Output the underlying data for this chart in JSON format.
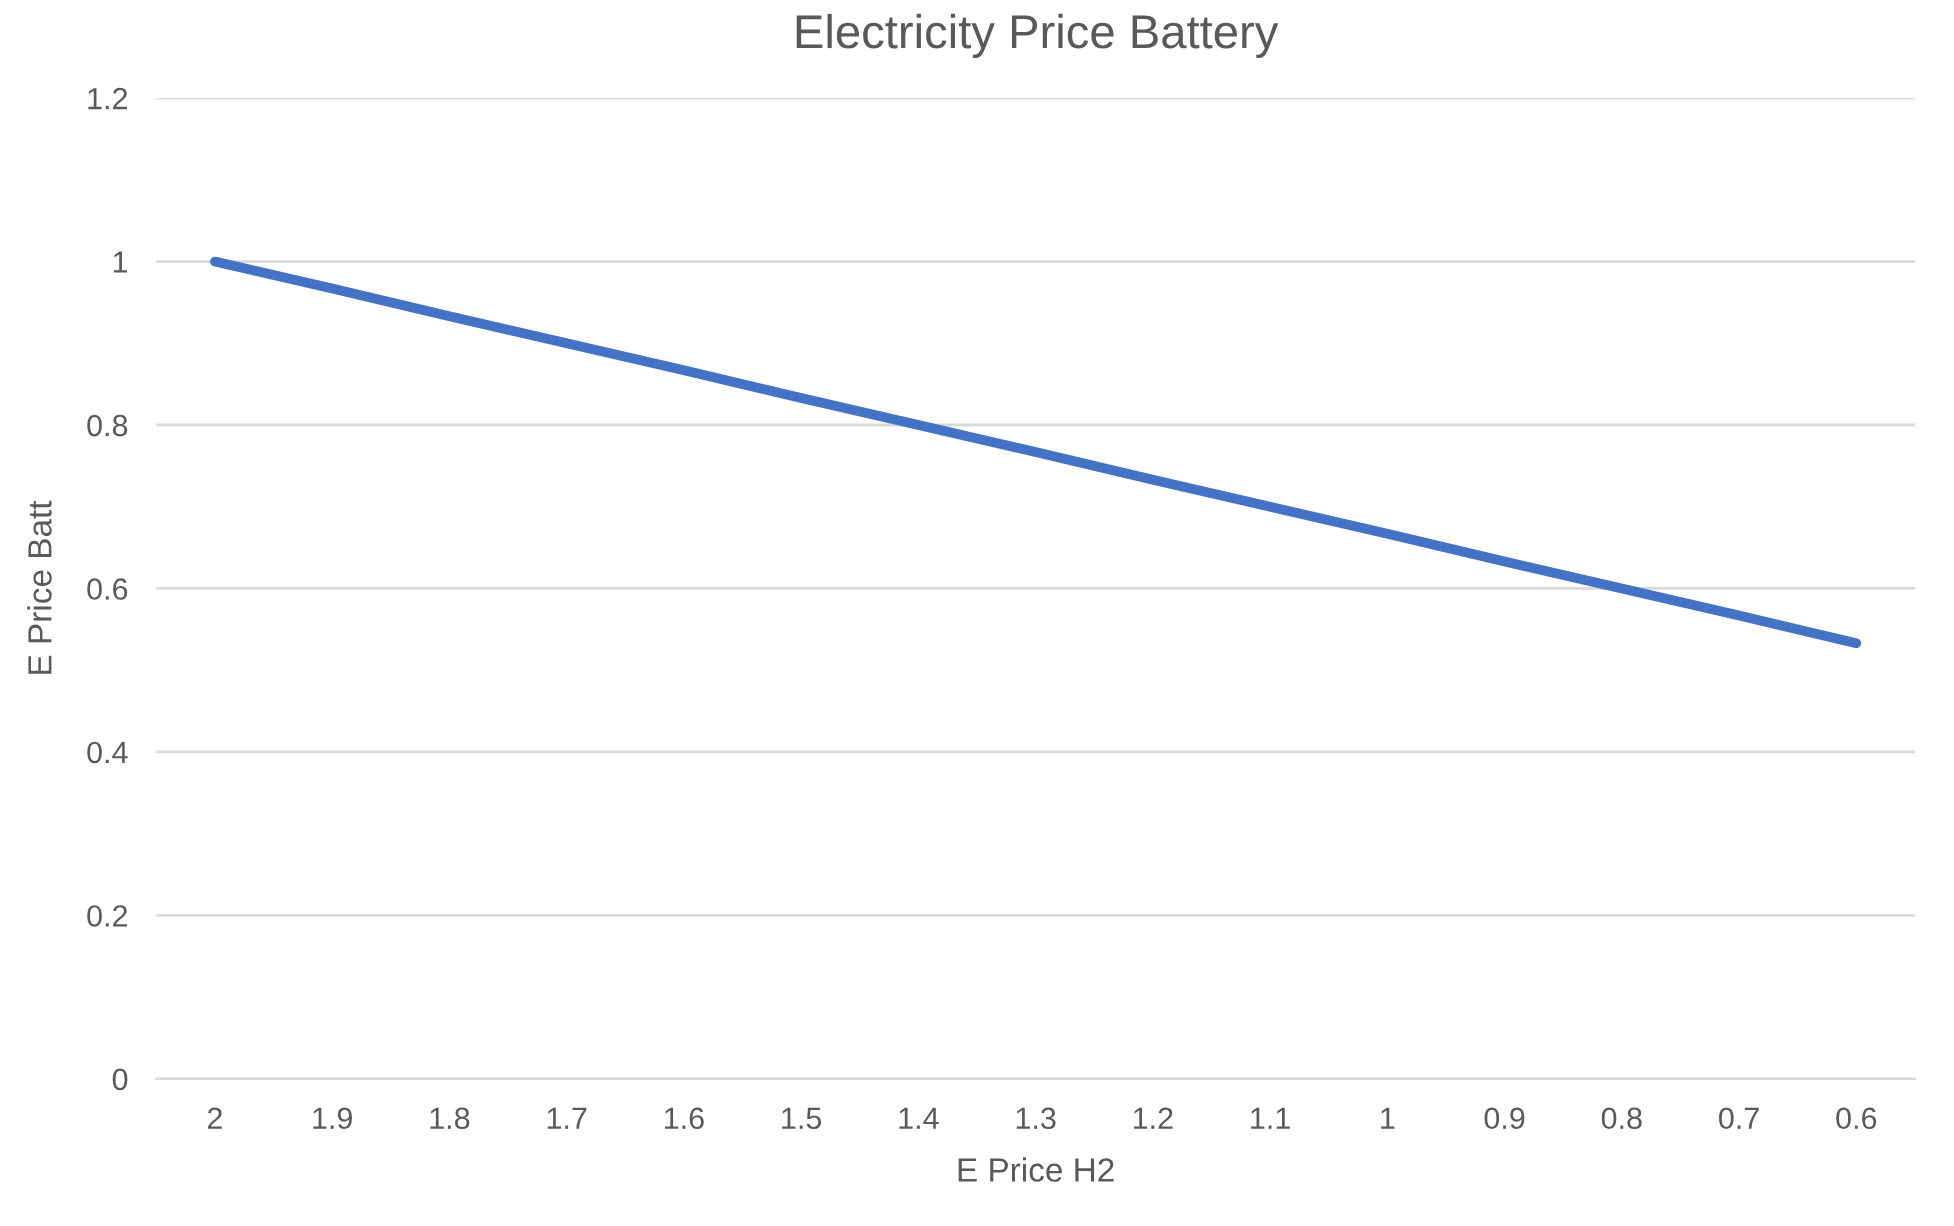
{
  "chart_data": {
    "type": "line",
    "title": "Electricity Price Battery",
    "xlabel": "E Price H2",
    "ylabel": "E Price Batt",
    "categories": [
      "2",
      "1.9",
      "1.8",
      "1.7",
      "1.6",
      "1.5",
      "1.4",
      "1.3",
      "1.2",
      "1.1",
      "1",
      "0.9",
      "0.8",
      "0.7",
      "0.6"
    ],
    "series": [
      {
        "color": "#4472c4",
        "values": [
          1.0,
          0.967,
          0.933,
          0.9,
          0.867,
          0.833,
          0.8,
          0.767,
          0.733,
          0.7,
          0.667,
          0.633,
          0.6,
          0.567,
          0.533
        ]
      }
    ],
    "ylim": [
      0,
      1.2
    ],
    "yticks": [
      0,
      0.2,
      0.4,
      0.6,
      0.8,
      1,
      1.2
    ],
    "grid": "y",
    "marker": "none",
    "line_style": "solid"
  }
}
